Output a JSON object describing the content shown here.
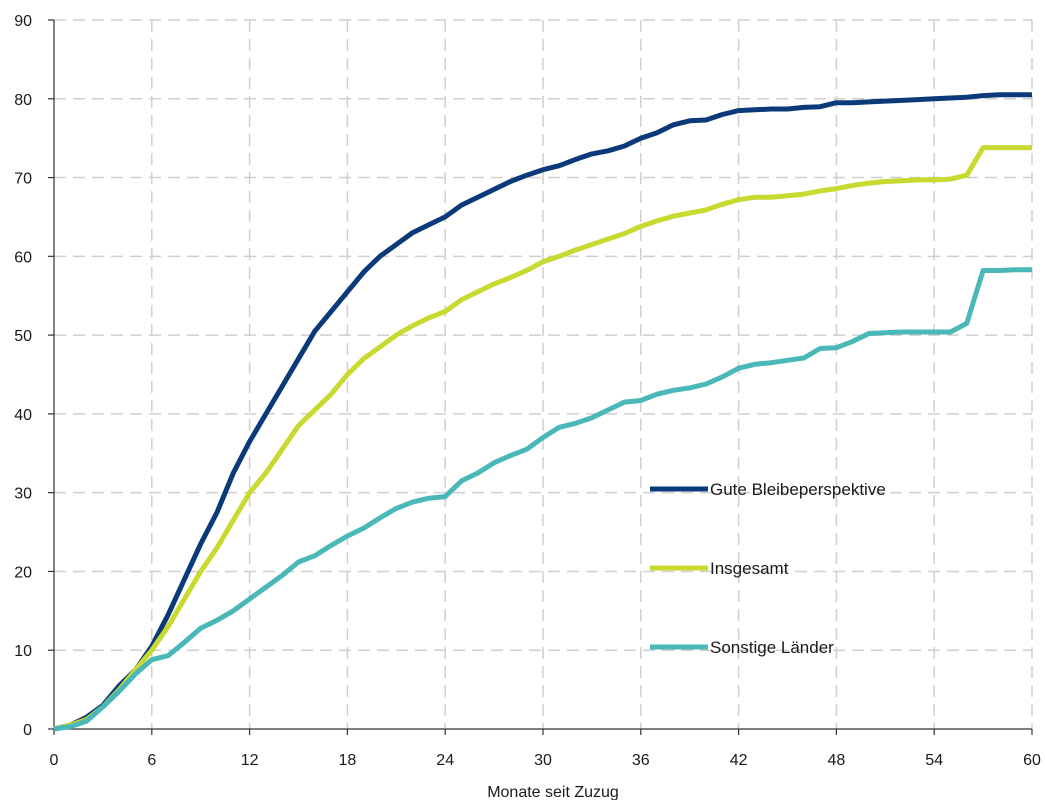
{
  "chart_data": {
    "type": "line",
    "title": "",
    "xlabel": "Monate seit Zuzug",
    "ylabel": "",
    "xlim": [
      0,
      60
    ],
    "ylim": [
      0,
      90
    ],
    "xticks": [
      0,
      6,
      12,
      18,
      24,
      30,
      36,
      42,
      48,
      54,
      60
    ],
    "yticks": [
      0,
      10,
      20,
      30,
      40,
      50,
      60,
      70,
      80,
      90
    ],
    "grid": true,
    "legend_position": "right, inside plot",
    "series": [
      {
        "name": "Gute Bleibeperspektive",
        "color": "#0b3a7a",
        "x": [
          0,
          1,
          2,
          3,
          4,
          5,
          6,
          7,
          8,
          9,
          10,
          11,
          12,
          13,
          14,
          15,
          16,
          17,
          18,
          19,
          20,
          21,
          22,
          23,
          24,
          25,
          26,
          27,
          28,
          29,
          30,
          31,
          32,
          33,
          34,
          35,
          36,
          37,
          38,
          39,
          40,
          41,
          42,
          43,
          44,
          45,
          46,
          47,
          48,
          49,
          50,
          51,
          52,
          53,
          54,
          55,
          56,
          57,
          58,
          59,
          60
        ],
        "y": [
          0,
          0.5,
          1.5,
          3,
          5.5,
          7.5,
          10.5,
          14.5,
          19,
          23.5,
          27.5,
          32.5,
          36.5,
          40,
          43.5,
          47,
          50.5,
          53,
          55.5,
          58,
          60,
          61.5,
          63,
          64,
          65,
          66.5,
          67.5,
          68.5,
          69.5,
          70.3,
          71,
          71.5,
          72.3,
          73,
          73.4,
          74,
          75,
          75.7,
          76.7,
          77.2,
          77.3,
          78,
          78.5,
          78.6,
          78.7,
          78.7,
          78.9,
          79,
          79.5,
          79.5,
          79.6,
          79.7,
          79.8,
          79.9,
          80,
          80.1,
          80.2,
          80.4,
          80.5,
          80.5,
          80.5
        ]
      },
      {
        "name": "Insgesamt",
        "color": "#c8d930",
        "x": [
          0,
          1,
          2,
          3,
          4,
          5,
          6,
          7,
          8,
          9,
          10,
          11,
          12,
          13,
          14,
          15,
          16,
          17,
          18,
          19,
          20,
          21,
          22,
          23,
          24,
          25,
          26,
          27,
          28,
          29,
          30,
          31,
          32,
          33,
          34,
          35,
          36,
          37,
          38,
          39,
          40,
          41,
          42,
          43,
          44,
          45,
          46,
          47,
          48,
          49,
          50,
          51,
          52,
          53,
          54,
          55,
          56,
          57,
          58,
          59,
          60
        ],
        "y": [
          0,
          0.5,
          1.2,
          2.8,
          5,
          7.5,
          10,
          13,
          16.5,
          20,
          23,
          26.5,
          30,
          32.5,
          35.5,
          38.5,
          40.5,
          42.5,
          45,
          47,
          48.5,
          50,
          51.2,
          52.2,
          53,
          54.5,
          55.5,
          56.5,
          57.3,
          58.2,
          59.3,
          60,
          60.8,
          61.5,
          62.2,
          62.9,
          63.8,
          64.5,
          65.1,
          65.5,
          65.9,
          66.6,
          67.2,
          67.5,
          67.5,
          67.7,
          67.9,
          68.3,
          68.6,
          69,
          69.3,
          69.5,
          69.6,
          69.7,
          69.7,
          69.8,
          70.3,
          73.8,
          73.8,
          73.8,
          73.8
        ]
      },
      {
        "name": "Sonstige Länder",
        "color": "#4ab8b8",
        "x": [
          0,
          1,
          2,
          3,
          4,
          5,
          6,
          7,
          8,
          9,
          10,
          11,
          12,
          13,
          14,
          15,
          16,
          17,
          18,
          19,
          20,
          21,
          22,
          23,
          24,
          25,
          26,
          27,
          28,
          29,
          30,
          31,
          32,
          33,
          34,
          35,
          36,
          37,
          38,
          39,
          40,
          41,
          42,
          43,
          44,
          45,
          46,
          47,
          48,
          49,
          50,
          51,
          52,
          53,
          54,
          55,
          56,
          57,
          58,
          59,
          60
        ],
        "y": [
          0,
          0.3,
          1,
          2.8,
          4.8,
          7,
          8.8,
          9.3,
          11,
          12.8,
          13.8,
          15,
          16.5,
          18,
          19.5,
          21.2,
          22,
          23.3,
          24.5,
          25.5,
          26.8,
          28,
          28.8,
          29.3,
          29.5,
          31.5,
          32.5,
          33.8,
          34.7,
          35.5,
          37,
          38.3,
          38.8,
          39.5,
          40.5,
          41.5,
          41.7,
          42.5,
          43,
          43.3,
          43.8,
          44.7,
          45.8,
          46.3,
          46.5,
          46.8,
          47.1,
          48.3,
          48.4,
          49.2,
          50.2,
          50.3,
          50.4,
          50.4,
          50.4,
          50.4,
          51.5,
          58.2,
          58.2,
          58.3,
          58.3
        ]
      }
    ]
  }
}
